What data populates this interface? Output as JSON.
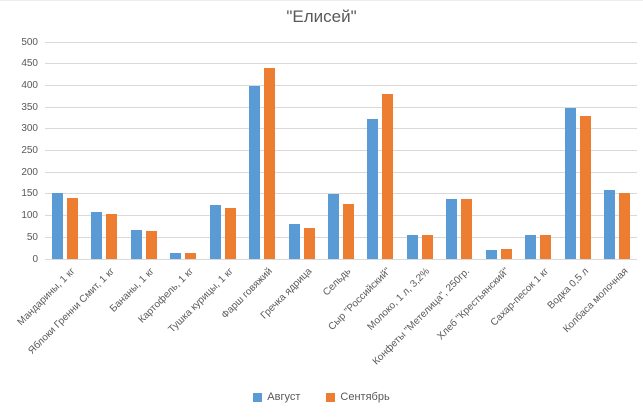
{
  "title": "\"Елисей\"",
  "legend": {
    "items": [
      {
        "label": "Август",
        "color": "#5B9BD5"
      },
      {
        "label": "Сентябрь",
        "color": "#ED7D31"
      }
    ]
  },
  "colors": {
    "series1": "#5B9BD5",
    "series2": "#ED7D31",
    "gridline": "#d9d9d9",
    "axis_text": "#595959",
    "title_text": "#595959"
  },
  "chart_data": {
    "type": "bar",
    "title": "\"Елисей\"",
    "xlabel": "",
    "ylabel": "",
    "ylim": [
      0,
      500
    ],
    "yticks": [
      0,
      50,
      100,
      150,
      200,
      250,
      300,
      350,
      400,
      450,
      500
    ],
    "grid": true,
    "legend_position": "bottom",
    "categories": [
      "Мандарины, 1 кг",
      "Яблоки Гренни Смит, 1 кг",
      "Бананы, 1 кг",
      "Картофель, 1 кг",
      "Тушка курицы, 1 кг",
      "Фарш говяжий",
      "Гречка ядрица",
      "Сельдь",
      "Сыр \"Российский\"",
      "Молоко, 1 л, 3,2%",
      "Конфеты \"Метелица\", 250гр.",
      "Хлеб \"Крестьянский\"",
      "Сахар-песок 1 кг",
      "Водка 0,5 л",
      "Колбаса молочная"
    ],
    "series": [
      {
        "name": "Август",
        "color": "#5B9BD5",
        "values": [
          153,
          109,
          67,
          14,
          124,
          399,
          81,
          150,
          323,
          56,
          139,
          20,
          56,
          349,
          159
        ]
      },
      {
        "name": "Сентябрь",
        "color": "#ED7D31",
        "values": [
          140,
          104,
          65,
          14,
          117,
          440,
          72,
          127,
          380,
          56,
          139,
          23,
          56,
          330,
          152
        ]
      }
    ]
  }
}
